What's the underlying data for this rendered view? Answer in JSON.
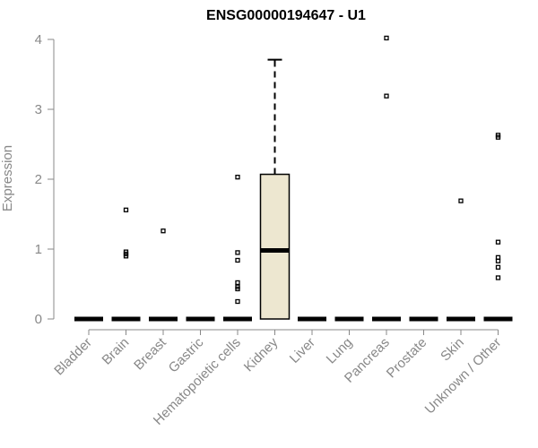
{
  "chart_data": {
    "type": "box",
    "title": "ENSG00000194647 - U1",
    "xlabel": "",
    "ylabel": "Expression",
    "ylim": [
      0,
      4
    ],
    "yticks": [
      "0",
      "1",
      "2",
      "3",
      "4"
    ],
    "categories": [
      "Bladder",
      "Brain",
      "Breast",
      "Gastric",
      "Hematopoietic cells",
      "Kidney",
      "Liver",
      "Lung",
      "Pancreas",
      "Prostate",
      "Skin",
      "Unknown / Other"
    ],
    "boxes": [
      {
        "category": "Bladder",
        "q1": 0,
        "median": 0,
        "q3": 0,
        "whisker_low": 0,
        "whisker_high": 0,
        "outliers": []
      },
      {
        "category": "Brain",
        "q1": 0,
        "median": 0,
        "q3": 0,
        "whisker_low": 0,
        "whisker_high": 0,
        "outliers": [
          1.56,
          0.96,
          0.93,
          0.9
        ]
      },
      {
        "category": "Breast",
        "q1": 0,
        "median": 0,
        "q3": 0,
        "whisker_low": 0,
        "whisker_high": 0,
        "outliers": [
          1.26
        ]
      },
      {
        "category": "Gastric",
        "q1": 0,
        "median": 0,
        "q3": 0,
        "whisker_low": 0,
        "whisker_high": 0,
        "outliers": []
      },
      {
        "category": "Hematopoietic cells",
        "q1": 0,
        "median": 0,
        "q3": 0,
        "whisker_low": 0,
        "whisker_high": 0,
        "outliers": [
          2.03,
          0.95,
          0.84,
          0.52,
          0.46,
          0.43,
          0.25
        ]
      },
      {
        "category": "Kidney",
        "q1": 0,
        "median": 0.98,
        "q3": 2.07,
        "whisker_low": 0,
        "whisker_high": 3.71,
        "outliers": []
      },
      {
        "category": "Liver",
        "q1": 0,
        "median": 0,
        "q3": 0,
        "whisker_low": 0,
        "whisker_high": 0,
        "outliers": []
      },
      {
        "category": "Lung",
        "q1": 0,
        "median": 0,
        "q3": 0,
        "whisker_low": 0,
        "whisker_high": 0,
        "outliers": []
      },
      {
        "category": "Pancreas",
        "q1": 0,
        "median": 0,
        "q3": 0,
        "whisker_low": 0,
        "whisker_high": 0,
        "outliers": [
          4.02,
          3.19
        ]
      },
      {
        "category": "Prostate",
        "q1": 0,
        "median": 0,
        "q3": 0,
        "whisker_low": 0,
        "whisker_high": 0,
        "outliers": []
      },
      {
        "category": "Skin",
        "q1": 0,
        "median": 0,
        "q3": 0,
        "whisker_low": 0,
        "whisker_high": 0,
        "outliers": [
          1.69
        ]
      },
      {
        "category": "Unknown / Other",
        "q1": 0,
        "median": 0,
        "q3": 0,
        "whisker_low": 0,
        "whisker_high": 0,
        "outliers": [
          2.63,
          2.6,
          1.1,
          0.88,
          0.83,
          0.74,
          0.59
        ]
      }
    ],
    "grid": false,
    "legend": "none",
    "colors": {
      "box_fill": "#ede7d0",
      "line": "#000000",
      "axis": "#888888",
      "title": "#000000"
    }
  }
}
